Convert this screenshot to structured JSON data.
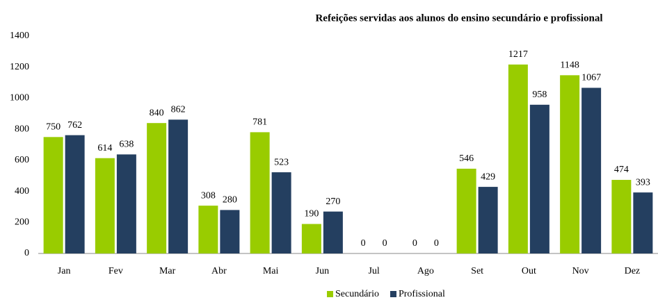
{
  "chart_data": {
    "type": "bar",
    "title": "Refeições servidas aos alunos do ensino secundário e profissional",
    "categories": [
      "Jan",
      "Fev",
      "Mar",
      "Abr",
      "Mai",
      "Jun",
      "Jul",
      "Ago",
      "Set",
      "Out",
      "Nov",
      "Dez"
    ],
    "series": [
      {
        "name": "Secundário",
        "color": "#99cc00",
        "values": [
          750,
          614,
          840,
          308,
          781,
          190,
          0,
          0,
          546,
          1217,
          1148,
          474
        ]
      },
      {
        "name": "Profissional",
        "color": "#243f60",
        "values": [
          762,
          638,
          862,
          280,
          523,
          270,
          0,
          0,
          429,
          958,
          1067,
          393
        ]
      }
    ],
    "ylim": [
      0,
      1400
    ],
    "yticks": [
      0,
      200,
      400,
      600,
      800,
      1000,
      1200,
      1400
    ],
    "grid": false,
    "legend": "bottom"
  }
}
